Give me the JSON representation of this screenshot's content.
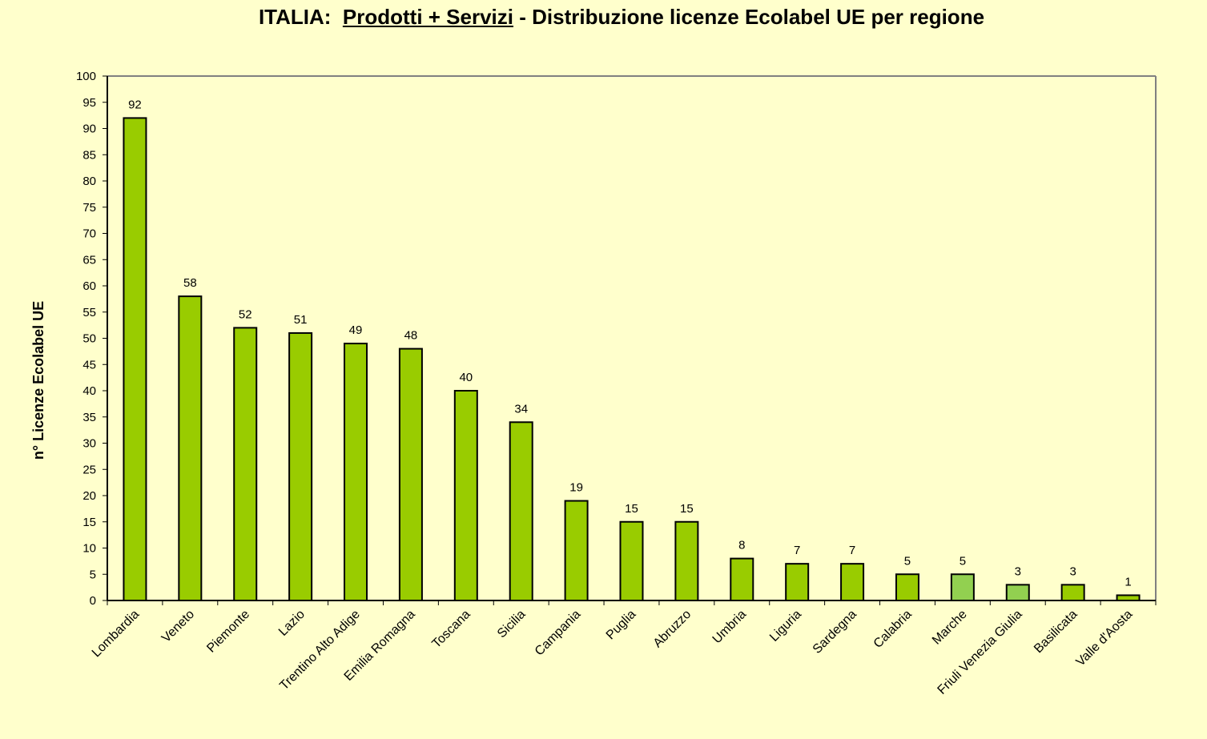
{
  "chart_data": {
    "type": "bar",
    "title_prefix": "ITALIA:",
    "title_underlined": "Prodotti + Servizi",
    "title_suffix": "- Distribuzione licenze Ecolabel UE per regione",
    "xlabel": "",
    "ylabel": "n° Licenze  Ecolabel  UE",
    "ylim": [
      0,
      100
    ],
    "ytick_step": 5,
    "grid": false,
    "categories": [
      "Lombardia",
      "Veneto",
      "Piemonte",
      "Lazio",
      "Trentino Alto Adige",
      "Emilia Romagna",
      "Toscana",
      "Sicilia",
      "Campania",
      "Puglia",
      "Abruzzo",
      "Umbria",
      "Liguria",
      "Sardegna",
      "Calabria",
      "Marche",
      "Friuli Venezia Giulia",
      "Basilicata",
      "Valle d'Aosta"
    ],
    "values": [
      92,
      58,
      52,
      51,
      49,
      48,
      40,
      34,
      19,
      15,
      15,
      8,
      7,
      7,
      5,
      5,
      3,
      3,
      1
    ],
    "bar_colors": [
      "#99CC00",
      "#99CC00",
      "#99CC00",
      "#99CC00",
      "#99CC00",
      "#99CC00",
      "#99CC00",
      "#99CC00",
      "#99CC00",
      "#99CC00",
      "#99CC00",
      "#99CC00",
      "#99CC00",
      "#99CC00",
      "#99CC00",
      "#92D050",
      "#92D050",
      "#99CC00",
      "#99CC00"
    ],
    "background": "#FFFFCC"
  }
}
